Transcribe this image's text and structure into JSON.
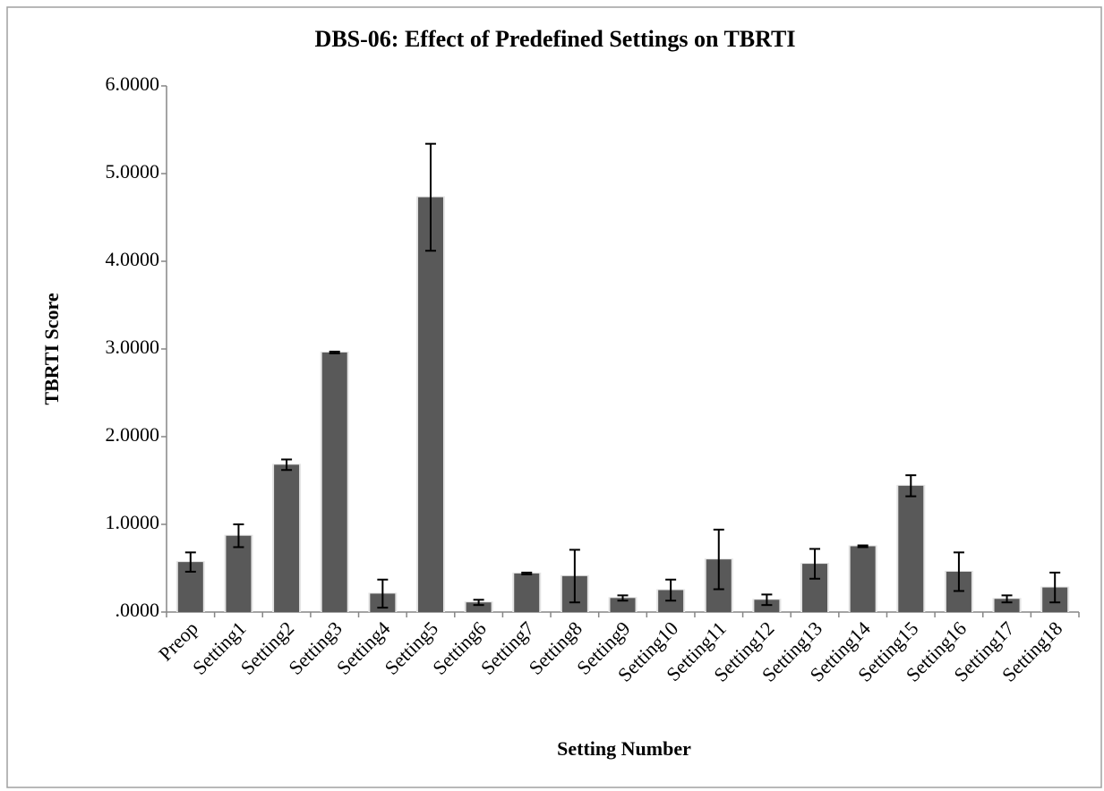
{
  "chart_data": {
    "type": "bar",
    "title": "DBS-06: Effect of Predefined Settings on TBRTI",
    "xlabel": "Setting Number",
    "ylabel": "TBRTI Score",
    "categories": [
      "Preop",
      "Setting1",
      "Setting2",
      "Setting3",
      "Setting4",
      "Setting5",
      "Setting6",
      "Setting7",
      "Setting8",
      "Setting9",
      "Setting10",
      "Setting11",
      "Setting12",
      "Setting13",
      "Setting14",
      "Setting15",
      "Setting16",
      "Setting17",
      "Setting18"
    ],
    "values": [
      0.57,
      0.87,
      1.68,
      2.96,
      0.21,
      4.73,
      0.11,
      0.44,
      0.41,
      0.16,
      0.25,
      0.6,
      0.14,
      0.55,
      0.75,
      1.44,
      0.46,
      0.15,
      0.28
    ],
    "errors": [
      0.11,
      0.13,
      0.06,
      0.01,
      0.16,
      0.61,
      0.03,
      0.01,
      0.3,
      0.03,
      0.12,
      0.34,
      0.06,
      0.17,
      0.01,
      0.12,
      0.22,
      0.04,
      0.17
    ],
    "color": "#595959",
    "ylim": [
      0,
      6
    ],
    "yticks": [
      {
        "value": 0,
        "label": ".0000"
      },
      {
        "value": 1,
        "label": "1.0000"
      },
      {
        "value": 2,
        "label": "2.0000"
      },
      {
        "value": 3,
        "label": "3.0000"
      },
      {
        "value": 4,
        "label": "4.0000"
      },
      {
        "value": 5,
        "label": "5.0000"
      },
      {
        "value": 6,
        "label": "6.0000"
      }
    ],
    "grid": false
  }
}
